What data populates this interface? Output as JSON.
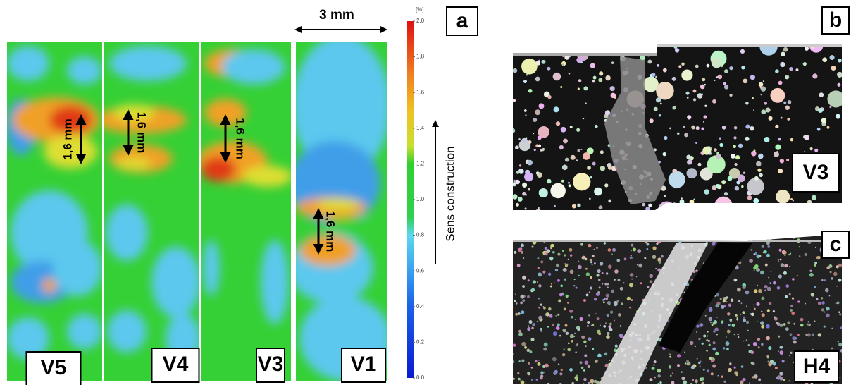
{
  "panel_a": {
    "label": "a",
    "scale_bar": "3 mm",
    "samples": [
      "V5",
      "V4",
      "V3",
      "V1"
    ],
    "dimension_labels": [
      "1,6 mm",
      "1,6 mm",
      "1,6 mm",
      "1,6 mm"
    ],
    "direction": "Sens construction",
    "colorbar": {
      "unit": "[%]",
      "range": [
        0,
        2
      ],
      "ticks": [
        {
          "value": 0,
          "label": "0.0"
        },
        {
          "value": 0.2,
          "label": "0.2"
        },
        {
          "value": 0.4,
          "label": "0.4"
        },
        {
          "value": 0.6,
          "label": "0.6"
        },
        {
          "value": 0.8,
          "label": "0.8"
        },
        {
          "value": 1,
          "label": "1.0"
        },
        {
          "value": 1.2,
          "label": "1.2"
        },
        {
          "value": 1.4,
          "label": "1.4"
        },
        {
          "value": 1.6,
          "label": "1.6"
        },
        {
          "value": 1.8,
          "label": "1.8"
        },
        {
          "value": 2,
          "label": "2.0"
        }
      ]
    }
  },
  "panel_b": {
    "label": "b",
    "sample": "V3"
  },
  "panel_c": {
    "label": "c",
    "sample": "H4"
  }
}
